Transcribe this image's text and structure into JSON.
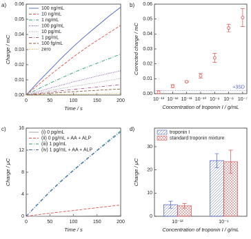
{
  "chart_data": [
    {
      "type": "line",
      "panel_label": "a)",
      "xlabel": "Time / s",
      "ylabel": "Charge / mC",
      "xlim": [
        0,
        200
      ],
      "ylim": [
        0,
        0.06
      ],
      "xticks": [
        0,
        50,
        100,
        150,
        200
      ],
      "yticks": [
        {
          "value": 0,
          "label": "0.00"
        },
        0.01,
        0.02,
        0.03,
        0.04,
        0.05,
        0.06
      ],
      "legend": "upper left",
      "x": [
        0,
        25,
        50,
        75,
        100,
        125,
        150,
        175,
        200
      ],
      "series": [
        {
          "name": "100 ng/mL",
          "color": "#4a5fc1",
          "dash": "solid",
          "values": [
            0,
            0.0085,
            0.0165,
            0.0245,
            0.032,
            0.039,
            0.0455,
            0.052,
            0.058
          ]
        },
        {
          "name": "10 ng/mL",
          "color": "#d9534f",
          "dash": "dashed",
          "values": [
            0,
            0.0067,
            0.013,
            0.0192,
            0.0252,
            0.0308,
            0.036,
            0.041,
            0.046
          ]
        },
        {
          "name": "1 ng/mL",
          "color": "#2a9d6f",
          "dash": "dashdot",
          "values": [
            0,
            0.004,
            0.0078,
            0.0113,
            0.0148,
            0.018,
            0.021,
            0.024,
            0.027
          ]
        },
        {
          "name": "100 pg/mL",
          "color": "#7a3e9d",
          "dash": "dotted",
          "values": [
            0,
            0.0023,
            0.0045,
            0.0066,
            0.0087,
            0.0106,
            0.0125,
            0.0143,
            0.016
          ]
        },
        {
          "name": "10 pg/mL",
          "color": "#999999",
          "dash": "dotted",
          "values": [
            0,
            0.0016,
            0.003,
            0.0044,
            0.0057,
            0.007,
            0.0083,
            0.0096,
            0.011
          ]
        },
        {
          "name": "1 pg/mL",
          "color": "#b05a8a",
          "dash": "dashdot",
          "values": [
            0,
            0.001,
            0.002,
            0.0029,
            0.0037,
            0.0045,
            0.0053,
            0.0061,
            0.0069
          ]
        },
        {
          "name": "100 fg/mL",
          "color": "#8a5a3a",
          "dash": "dashed",
          "values": [
            0,
            0.0006,
            0.0012,
            0.0017,
            0.0022,
            0.0027,
            0.0031,
            0.0036,
            0.004
          ]
        },
        {
          "name": "zero",
          "color": "#c9a227",
          "dash": "dotted",
          "values": [
            0,
            0.0002,
            0.0003,
            0.0005,
            0.0006,
            0.0007,
            0.0008,
            0.0009,
            0.001
          ]
        }
      ]
    },
    {
      "type": "scatter",
      "panel_label": "b)",
      "xlabel": "Concentration of troponin I / g/mL",
      "ylabel": "Corrected charge / mC",
      "xscale": "log",
      "xlim": [
        5e-14,
        2e-07
      ],
      "ylim": [
        0,
        0.06
      ],
      "xticks": [
        {
          "value": 1e-13,
          "label": "10⁻¹³"
        },
        {
          "value": 1e-12,
          "label": "10⁻¹²"
        },
        {
          "value": 1e-11,
          "label": "10⁻¹¹"
        },
        {
          "value": 1e-10,
          "label": "10⁻¹⁰"
        },
        {
          "value": 1e-09,
          "label": "10⁻⁹"
        },
        {
          "value": 1e-08,
          "label": "10⁻⁸"
        },
        {
          "value": 1e-07,
          "label": "10⁻⁷"
        }
      ],
      "yticks": [
        {
          "value": 0,
          "label": "0.00"
        },
        0.01,
        0.02,
        0.03,
        0.04,
        0.05,
        0.06
      ],
      "threshold": 0.002,
      "threshold_label": "+3SD",
      "x": [
        1e-13,
        1e-12,
        1e-11,
        1e-10,
        1e-09,
        1e-08,
        1e-07
      ],
      "series": [
        {
          "color": "#d9534f",
          "values": [
            0.001,
            0.005,
            0.008,
            0.012,
            0.024,
            0.044,
            0.051
          ],
          "errors": [
            0.001,
            0.001,
            0.0005,
            0.0015,
            0.003,
            0.0025,
            0.006
          ]
        }
      ]
    },
    {
      "type": "line",
      "panel_label": "c)",
      "xlabel": "Time / s",
      "ylabel": "Charge / μC",
      "xlim": [
        0,
        200
      ],
      "ylim": [
        0,
        16
      ],
      "xticks": [
        0,
        50,
        100,
        150,
        200
      ],
      "yticks": [
        0,
        4,
        8,
        12,
        16
      ],
      "legend": "upper left",
      "x": [
        0,
        25,
        50,
        75,
        100,
        125,
        150,
        175,
        200
      ],
      "series": [
        {
          "name": "(i) 0 pg/mL",
          "color": "#999999",
          "dash": "solid",
          "values": [
            0,
            0.02,
            0.03,
            0.04,
            0.05,
            0.06,
            0.07,
            0.08,
            0.1
          ]
        },
        {
          "name": "(ii) 0 pg/mL + AA + ALP",
          "color": "#d9534f",
          "dash": "dashed",
          "values": [
            0,
            0.3,
            0.55,
            0.8,
            1.05,
            1.3,
            1.55,
            1.8,
            2.05
          ]
        },
        {
          "name": "(iii) 1 pg/mL",
          "color": "#2a9d6f",
          "dash": "dashdot",
          "values": [
            0,
            2.3,
            4.5,
            6.5,
            8.4,
            10.2,
            12,
            13.8,
            15.5
          ]
        },
        {
          "name": "(iv) 1 pg/mL + AA + ALP",
          "color": "#4a5fc1",
          "dash": "dashdot",
          "values": [
            0,
            2.2,
            4.4,
            6.4,
            8.3,
            10.1,
            11.9,
            13.6,
            15.3
          ]
        }
      ]
    },
    {
      "type": "bar",
      "panel_label": "d)",
      "xlabel": "Concentration of troponin I / g/mL",
      "ylabel": "Charge / μC",
      "categories": [
        "10⁻¹²",
        "10⁻⁹"
      ],
      "ylim": [
        0,
        38
      ],
      "yticks": [
        0,
        10,
        20,
        30
      ],
      "legend": "upper left",
      "series": [
        {
          "name": "troponin I",
          "color": "#4a5fc1",
          "hatch": "diagonal",
          "values": [
            5,
            24
          ],
          "errors": [
            1.5,
            3
          ]
        },
        {
          "name": "standard troponin mixture",
          "color": "#d9534f",
          "hatch": "cross",
          "values": [
            4.5,
            23.5
          ],
          "errors": [
            1,
            5
          ]
        }
      ]
    }
  ]
}
